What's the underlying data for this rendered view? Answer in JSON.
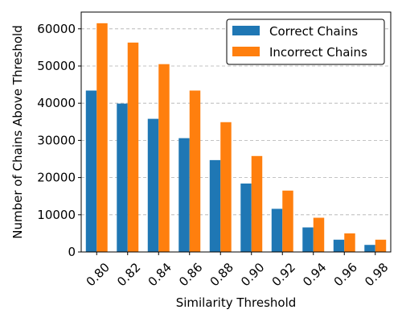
{
  "chart_data": {
    "type": "bar",
    "title": "",
    "xlabel": "Similarity Threshold",
    "ylabel": "Number of Chains Above Threshold",
    "categories": [
      "0.80",
      "0.82",
      "0.84",
      "0.86",
      "0.88",
      "0.90",
      "0.92",
      "0.94",
      "0.96",
      "0.98"
    ],
    "ylim": [
      0,
      64500
    ],
    "yticks": [
      0,
      10000,
      20000,
      30000,
      40000,
      50000,
      60000
    ],
    "ytick_labels": [
      "0",
      "10000",
      "20000",
      "30000",
      "40000",
      "50000",
      "60000"
    ],
    "grid": "y-dashed",
    "legend_position": "top-right",
    "series": [
      {
        "name": "Correct Chains",
        "color": "#1f77b4",
        "values": [
          43400,
          39900,
          35800,
          30600,
          24700,
          18400,
          11600,
          6600,
          3300,
          1900
        ]
      },
      {
        "name": "Incorrect Chains",
        "color": "#ff7f0e",
        "values": [
          61500,
          56300,
          50500,
          43400,
          34900,
          25800,
          16500,
          9200,
          5000,
          3300
        ]
      }
    ]
  }
}
